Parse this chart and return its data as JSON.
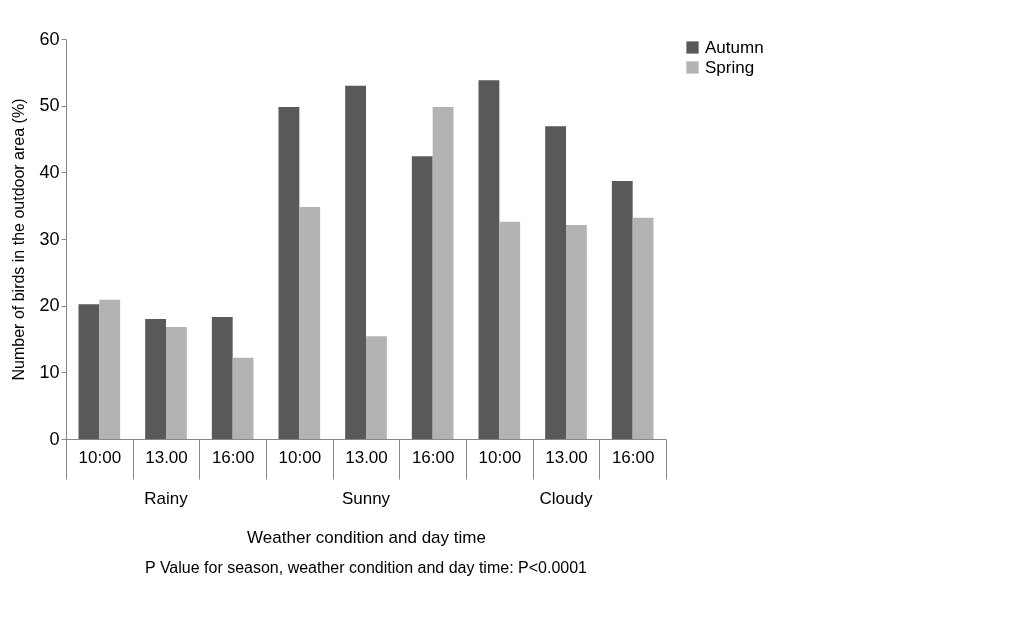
{
  "chart_data": {
    "type": "bar",
    "xlabel": "Weather condition and day time",
    "ylabel": "Number of birds in the outdoor area (%)",
    "categories": [
      "10:00",
      "13.00",
      "16:00",
      "10:00",
      "13.00",
      "16:00",
      "10:00",
      "13.00",
      "16:00"
    ],
    "series": [
      {
        "name": "Autumn",
        "color": "#595959",
        "values": [
          20.2,
          18.0,
          18.3,
          49.8,
          53.0,
          42.4,
          53.8,
          46.9,
          38.7
        ]
      },
      {
        "name": "Spring",
        "color": "#b3b3b3",
        "values": [
          20.9,
          16.8,
          12.2,
          34.8,
          15.4,
          49.8,
          32.6,
          32.1,
          33.2
        ]
      }
    ],
    "ylim": [
      0,
      60
    ],
    "yticks": [
      0,
      10,
      20,
      30,
      40,
      50,
      60
    ],
    "grid": false,
    "legend": "right",
    "annotations": [
      "Rainy",
      "Sunny",
      "Cloudy",
      "P Value for season, weather condition and day time: P<0.0001"
    ]
  }
}
